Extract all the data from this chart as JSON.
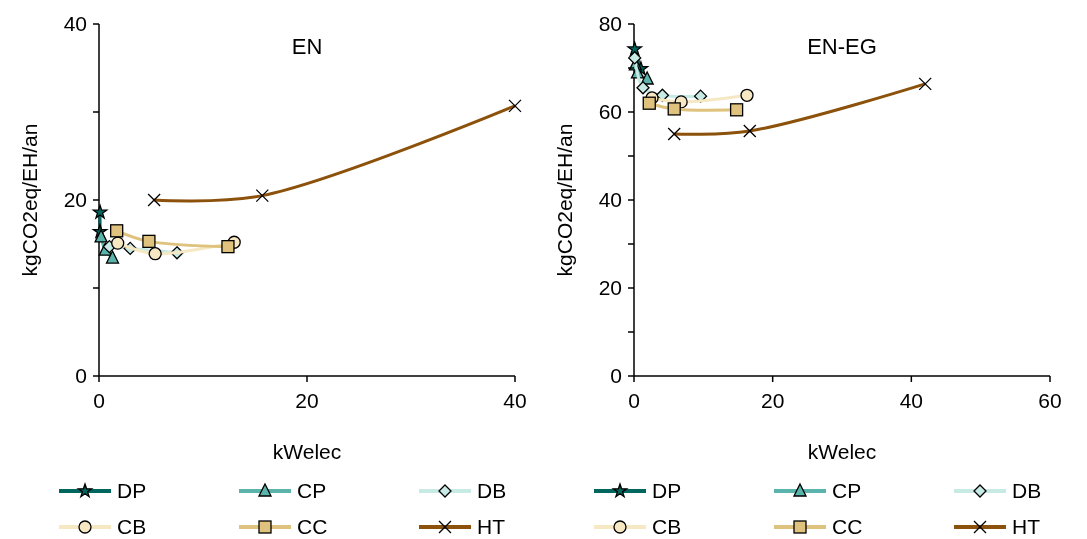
{
  "chart_data": [
    {
      "type": "line",
      "title": "EN",
      "xlabel": "kWelec",
      "ylabel": "kgCO2eq/EH/an",
      "xlim": [
        0,
        40
      ],
      "xticks": [
        0,
        20,
        40
      ],
      "ylim": [
        0,
        40
      ],
      "yticks": [
        0,
        {
          "value": 10,
          "label": null
        },
        20,
        {
          "value": 30,
          "label": null
        },
        40
      ],
      "legend": "bottom",
      "grid": false,
      "series": [
        {
          "name": "DP",
          "color": "#01665e",
          "marker": "star",
          "x": [
            0.1,
            0.1
          ],
          "values": [
            18.6,
            16.4
          ]
        },
        {
          "name": "CP",
          "color": "#5ab4ac",
          "marker": "triangle",
          "x": [
            0.2,
            0.6,
            1.3
          ],
          "values": [
            15.8,
            14.3,
            13.4
          ]
        },
        {
          "name": "DB",
          "color": "#c7eae5",
          "marker": "diamond",
          "x": [
            1.0,
            3.0,
            7.5
          ],
          "values": [
            14.7,
            14.5,
            14.0
          ]
        },
        {
          "name": "CB",
          "color": "#f6e8c3",
          "marker": "circle",
          "x": [
            1.8,
            5.4,
            13.0
          ],
          "values": [
            15.1,
            13.9,
            15.2
          ]
        },
        {
          "name": "CC",
          "color": "#dfc27d",
          "marker": "square",
          "x": [
            1.7,
            4.8,
            12.4
          ],
          "values": [
            16.5,
            15.3,
            14.7
          ]
        },
        {
          "name": "HT",
          "color": "#8c510a",
          "marker": "cross",
          "x": [
            5.3,
            15.7,
            40
          ],
          "values": [
            20.0,
            20.5,
            30.7
          ]
        }
      ]
    },
    {
      "type": "line",
      "title": "EN-EG",
      "xlabel": "kWelec",
      "ylabel": "kgCO2eq/EH/an",
      "xlim": [
        0,
        60
      ],
      "xticks": [
        0,
        20,
        40,
        60
      ],
      "ylim": [
        0,
        80
      ],
      "yticks": [
        0,
        {
          "value": 10,
          "label": null
        },
        20,
        {
          "value": 30,
          "label": null
        },
        40,
        {
          "value": 50,
          "label": null
        },
        60,
        {
          "value": 70,
          "label": null
        },
        80
      ],
      "legend": "bottom",
      "grid": false,
      "series": [
        {
          "name": "DP",
          "color": "#01665e",
          "marker": "star",
          "x": [
            0.1,
            1.0
          ],
          "values": [
            74.3,
            69.8
          ]
        },
        {
          "name": "CP",
          "color": "#5ab4ac",
          "marker": "triangle",
          "x": [
            0.2,
            0.5,
            1.9
          ],
          "values": [
            70.7,
            68.9,
            67.5
          ]
        },
        {
          "name": "DB",
          "color": "#c7eae5",
          "marker": "diamond",
          "x": [
            0.1,
            1.3,
            4.1,
            9.6
          ],
          "values": [
            72.3,
            65.5,
            63.8,
            63.6
          ]
        },
        {
          "name": "CB",
          "color": "#f6e8c3",
          "marker": "circle",
          "x": [
            2.6,
            6.8,
            16.3
          ],
          "values": [
            63.2,
            62.3,
            63.8
          ]
        },
        {
          "name": "CC",
          "color": "#dfc27d",
          "marker": "square",
          "x": [
            2.2,
            5.8,
            14.8
          ],
          "values": [
            62.0,
            60.7,
            60.5
          ]
        },
        {
          "name": "HT",
          "color": "#8c510a",
          "marker": "cross",
          "x": [
            5.8,
            16.7,
            42.0
          ],
          "values": [
            55.0,
            55.7,
            66.4
          ]
        }
      ]
    }
  ]
}
